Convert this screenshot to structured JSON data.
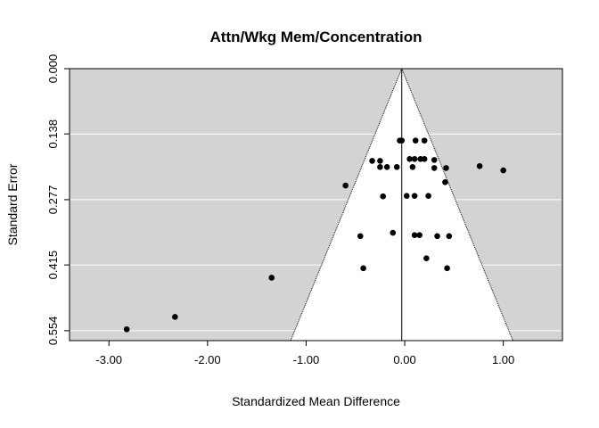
{
  "chart_data": {
    "type": "scatter",
    "subtype": "funnel",
    "title": "Attn/Wkg Mem/Concentration",
    "xlabel": "Standardized Mean Difference",
    "ylabel": "Standard Error",
    "xlim": [
      -3.4,
      1.6
    ],
    "ylim": [
      0.575,
      0.0
    ],
    "y_reversed": true,
    "x_ticks": [
      -3.0,
      -2.0,
      -1.0,
      0.0,
      1.0
    ],
    "x_tick_labels": [
      "-3.00",
      "-2.00",
      "-1.00",
      "0.00",
      "1.00"
    ],
    "y_ticks": [
      0.0,
      0.138,
      0.277,
      0.415,
      0.554
    ],
    "y_tick_labels": [
      "0.000",
      "0.138",
      "0.277",
      "0.415",
      "0.554"
    ],
    "grid": "horizontal",
    "background": "#d3d3d3",
    "funnel_color": "#ffffff",
    "point_color": "#000000",
    "center": -0.03,
    "funnel_z": 1.96,
    "points": [
      {
        "x": -0.05,
        "y": 0.152
      },
      {
        "x": -0.03,
        "y": 0.152
      },
      {
        "x": 0.11,
        "y": 0.152
      },
      {
        "x": 0.2,
        "y": 0.152
      },
      {
        "x": -0.33,
        "y": 0.195
      },
      {
        "x": -0.25,
        "y": 0.195
      },
      {
        "x": 0.05,
        "y": 0.191
      },
      {
        "x": 0.1,
        "y": 0.191
      },
      {
        "x": 0.16,
        "y": 0.191
      },
      {
        "x": 0.2,
        "y": 0.191
      },
      {
        "x": 0.3,
        "y": 0.193
      },
      {
        "x": -0.25,
        "y": 0.208
      },
      {
        "x": -0.18,
        "y": 0.208
      },
      {
        "x": -0.08,
        "y": 0.208
      },
      {
        "x": 0.08,
        "y": 0.208
      },
      {
        "x": 0.3,
        "y": 0.21
      },
      {
        "x": 0.42,
        "y": 0.21
      },
      {
        "x": 0.76,
        "y": 0.206
      },
      {
        "x": 1.0,
        "y": 0.215
      },
      {
        "x": 0.41,
        "y": 0.24
      },
      {
        "x": -0.6,
        "y": 0.247
      },
      {
        "x": -0.22,
        "y": 0.27
      },
      {
        "x": 0.02,
        "y": 0.269
      },
      {
        "x": 0.1,
        "y": 0.269
      },
      {
        "x": 0.24,
        "y": 0.269
      },
      {
        "x": -0.12,
        "y": 0.347
      },
      {
        "x": -0.45,
        "y": 0.354
      },
      {
        "x": 0.1,
        "y": 0.352
      },
      {
        "x": 0.15,
        "y": 0.352
      },
      {
        "x": 0.33,
        "y": 0.354
      },
      {
        "x": 0.45,
        "y": 0.354
      },
      {
        "x": 0.22,
        "y": 0.401
      },
      {
        "x": -0.42,
        "y": 0.422
      },
      {
        "x": 0.43,
        "y": 0.422
      },
      {
        "x": -1.35,
        "y": 0.442
      },
      {
        "x": -2.33,
        "y": 0.525
      },
      {
        "x": -2.82,
        "y": 0.551
      }
    ]
  }
}
